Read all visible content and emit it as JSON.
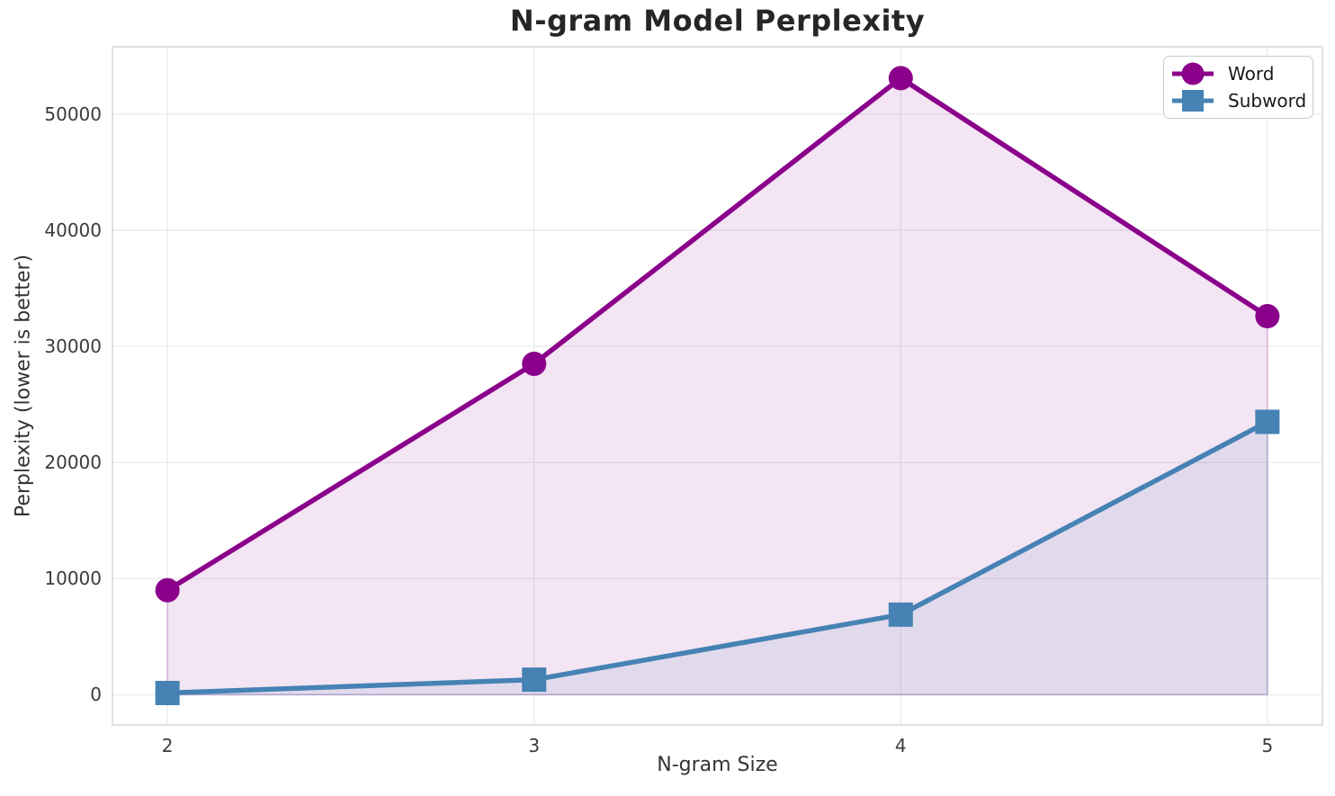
{
  "chart_data": {
    "type": "line",
    "title": "N-gram Model Perplexity",
    "xlabel": "N-gram Size",
    "ylabel": "Perplexity (lower is better)",
    "x": [
      2,
      3,
      4,
      5
    ],
    "series": [
      {
        "name": "Word",
        "color": "#8B008B",
        "marker": "circle",
        "values": [
          9000,
          28500,
          53100,
          32600
        ]
      },
      {
        "name": "Subword",
        "color": "#4682B4",
        "marker": "square",
        "values": [
          150,
          1300,
          6900,
          23500
        ]
      }
    ],
    "xticks": [
      "2",
      "3",
      "4",
      "5"
    ],
    "xtick_values": [
      2,
      3,
      4,
      5
    ],
    "yticks": [
      "0",
      "10000",
      "20000",
      "30000",
      "40000",
      "50000"
    ],
    "ytick_values": [
      0,
      10000,
      20000,
      30000,
      40000,
      50000
    ],
    "xlim": [
      1.85,
      5.15
    ],
    "ylim": [
      -2600,
      55800
    ],
    "grid": true,
    "fill_under_lines": true,
    "legend_position": "upper right",
    "colors": {
      "grid": "#ececec",
      "plot_border": "#d6d6d6",
      "title_text": "#262626",
      "axis_text": "#333333",
      "fill_opacity": 0.1
    }
  }
}
